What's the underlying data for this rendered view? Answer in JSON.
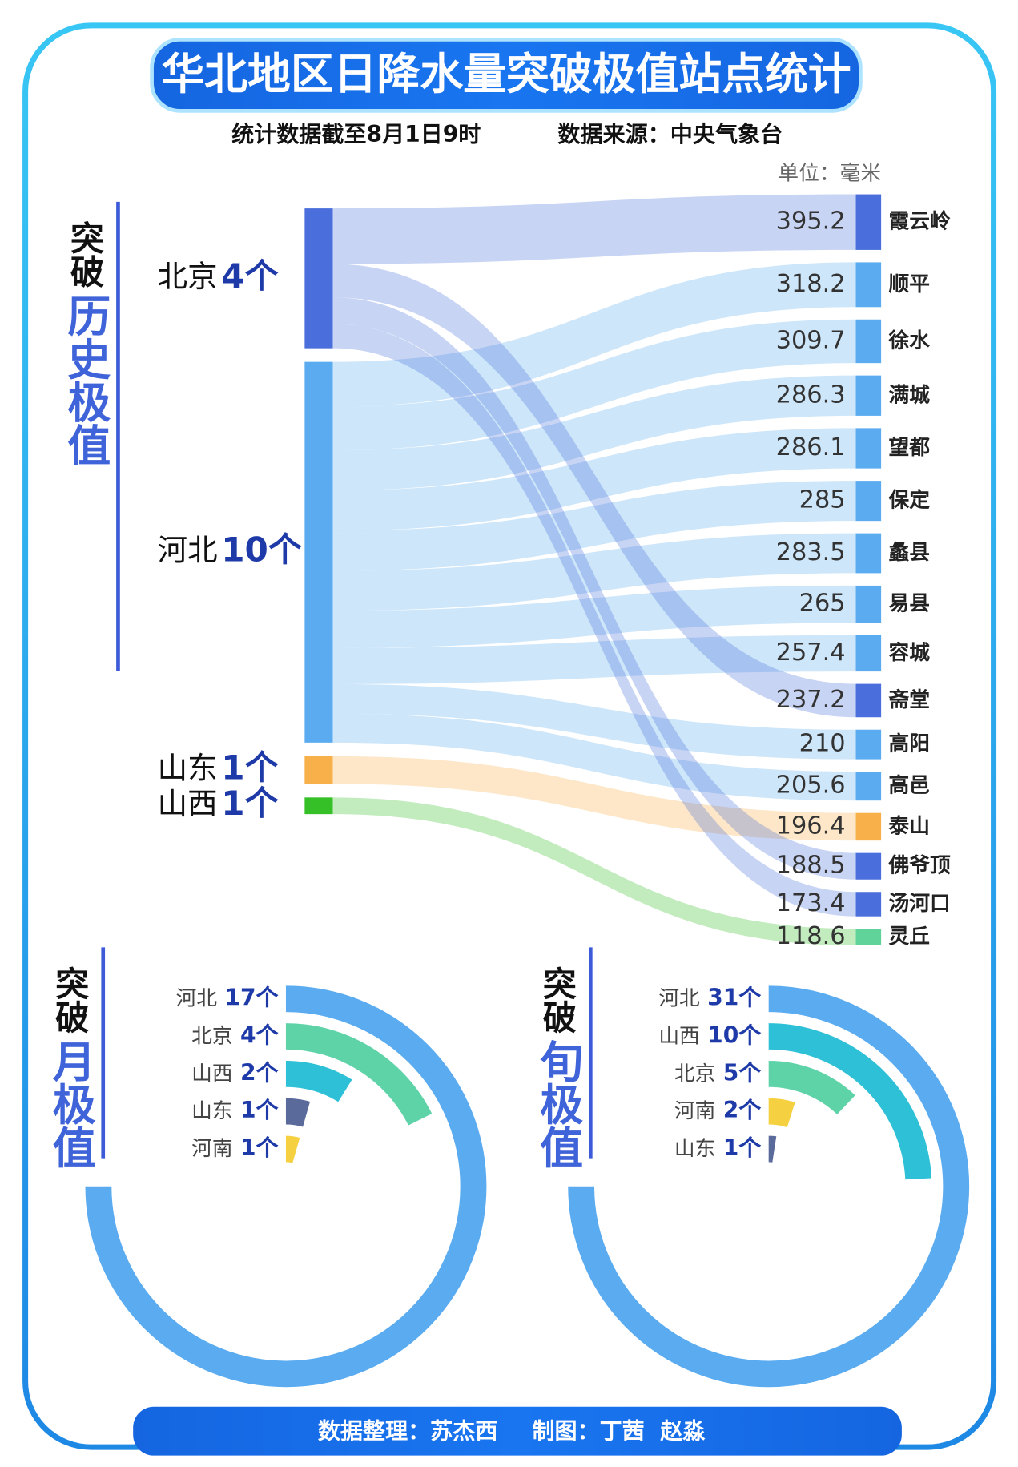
{
  "title": "华北地区日降水量突破极值站点统计",
  "subtitle_date": "统计数据截至8月1日9时",
  "subtitle_source": "数据来源：中央气象台",
  "footer_data": "数据整理：苏杰西",
  "footer_chart": "制图：丁茜  赵淼",
  "chart_data": [
    {
      "type": "sankey",
      "title_prefix": "突破",
      "title": "历史极值",
      "unit": "单位：毫米",
      "sources": [
        {
          "name": "北京",
          "count": 4,
          "count_label": "4个",
          "color": "#4a6fdc"
        },
        {
          "name": "河北",
          "count": 10,
          "count_label": "10个",
          "color": "#5aabf0"
        },
        {
          "name": "山东",
          "count": 1,
          "count_label": "1个",
          "color": "#f7b04a"
        },
        {
          "name": "山西",
          "count": 1,
          "count_label": "1个",
          "color": "#34c026"
        }
      ],
      "stations": [
        {
          "name": "霞云岭",
          "value": 395.2,
          "source": "北京",
          "color": "#4a6fdc"
        },
        {
          "name": "顺平",
          "value": 318.2,
          "source": "河北",
          "color": "#5aabf0"
        },
        {
          "name": "徐水",
          "value": 309.7,
          "source": "河北",
          "color": "#5aabf0"
        },
        {
          "name": "满城",
          "value": 286.3,
          "source": "河北",
          "color": "#5aabf0"
        },
        {
          "name": "望都",
          "value": 286.1,
          "source": "河北",
          "color": "#5aabf0"
        },
        {
          "name": "保定",
          "value": 285,
          "source": "河北",
          "color": "#5aabf0"
        },
        {
          "name": "蠡县",
          "value": 283.5,
          "source": "河北",
          "color": "#5aabf0"
        },
        {
          "name": "易县",
          "value": 265,
          "source": "河北",
          "color": "#5aabf0"
        },
        {
          "name": "容城",
          "value": 257.4,
          "source": "河北",
          "color": "#5aabf0"
        },
        {
          "name": "斋堂",
          "value": 237.2,
          "source": "北京",
          "color": "#4a6fdc"
        },
        {
          "name": "高阳",
          "value": 210,
          "source": "河北",
          "color": "#5aabf0"
        },
        {
          "name": "高邑",
          "value": 205.6,
          "source": "河北",
          "color": "#5aabf0"
        },
        {
          "name": "泰山",
          "value": 196.4,
          "source": "山东",
          "color": "#f7b04a"
        },
        {
          "name": "佛爷顶",
          "value": 188.5,
          "source": "北京",
          "color": "#4a6fdc"
        },
        {
          "name": "汤河口",
          "value": 173.4,
          "source": "北京",
          "color": "#4a6fdc"
        },
        {
          "name": "灵丘",
          "value": 118.6,
          "source": "山西",
          "color": "#5fd39a"
        }
      ]
    },
    {
      "type": "radial_bar",
      "title_prefix": "突破",
      "title": "月极值",
      "categories": [
        "河北",
        "北京",
        "山西",
        "山东",
        "河南"
      ],
      "values": [
        17,
        4,
        2,
        1,
        1
      ],
      "value_labels": [
        "17个",
        "4个",
        "2个",
        "1个",
        "1个"
      ],
      "colors": [
        "#5aabf0",
        "#5fd3a8",
        "#2ec0d6",
        "#5a6a9a",
        "#f5d040"
      ]
    },
    {
      "type": "radial_bar",
      "title_prefix": "突破",
      "title": "旬极值",
      "categories": [
        "河北",
        "山西",
        "北京",
        "河南",
        "山东"
      ],
      "values": [
        31,
        10,
        5,
        2,
        1
      ],
      "value_labels": [
        "31个",
        "10个",
        "5个",
        "2个",
        "1个"
      ],
      "colors": [
        "#5aabf0",
        "#2ec0d6",
        "#5fd3a8",
        "#f5d040",
        "#5a6a9a"
      ]
    }
  ]
}
